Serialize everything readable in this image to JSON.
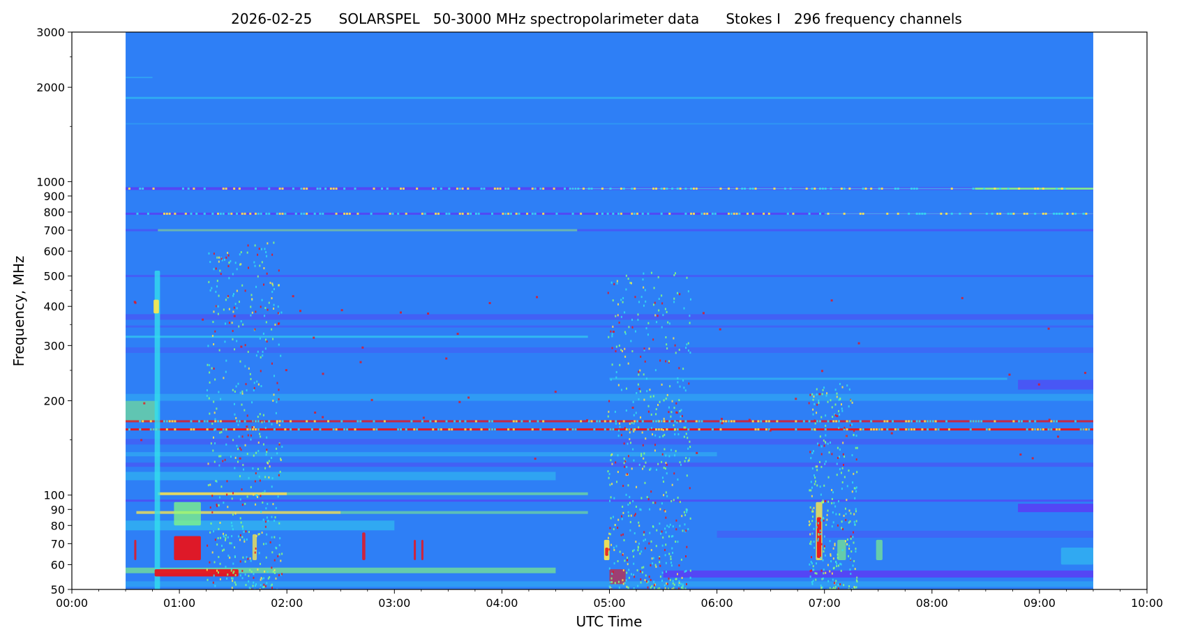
{
  "chart_data": {
    "type": "heatmap",
    "title": "2026-02-25      SOLARSPEL   50-3000 MHz spectropolarimeter data      Stokes I   296 frequency channels",
    "xlabel": "UTC Time",
    "ylabel": "Frequency, MHz",
    "x_scale": "time",
    "y_scale": "log",
    "xlim": [
      "00:00",
      "10:00"
    ],
    "ylim": [
      50,
      3000
    ],
    "x_ticks": [
      "00:00",
      "01:00",
      "02:00",
      "03:00",
      "04:00",
      "05:00",
      "06:00",
      "07:00",
      "08:00",
      "09:00",
      "10:00"
    ],
    "y_ticks": [
      {
        "value": 50,
        "label": "50"
      },
      {
        "value": 60,
        "label": "60"
      },
      {
        "value": 70,
        "label": "70"
      },
      {
        "value": 80,
        "label": "80"
      },
      {
        "value": 90,
        "label": "90"
      },
      {
        "value": 100,
        "label": "100"
      },
      {
        "value": 200,
        "label": "200"
      },
      {
        "value": 300,
        "label": "300"
      },
      {
        "value": 400,
        "label": "400"
      },
      {
        "value": 500,
        "label": "500"
      },
      {
        "value": 600,
        "label": "600"
      },
      {
        "value": 700,
        "label": "700"
      },
      {
        "value": 800,
        "label": "800"
      },
      {
        "value": 900,
        "label": "900"
      },
      {
        "value": 1000,
        "label": "1000"
      },
      {
        "value": 2000,
        "label": "2000"
      },
      {
        "value": 3000,
        "label": "3000"
      }
    ],
    "y_minor_ticks": [
      1500,
      2500,
      150,
      250,
      350,
      450
    ],
    "data_time_range": [
      "00:30",
      "09:30"
    ],
    "colormap": "jet",
    "colors": {
      "background": "#2e7ff6",
      "weak": "#5a3cf5",
      "cyan": "#33ddee",
      "green": "#8aff7a",
      "yellow": "#ffe84a",
      "red": "#e8141c"
    },
    "bands": [
      {
        "freq": 2150,
        "t0": 0.5,
        "t1": 0.75,
        "color": "cyan",
        "opacity": 0.35,
        "width": 2
      },
      {
        "freq": 1850,
        "t0": 0.5,
        "t1": 9.5,
        "color": "cyan",
        "opacity": 0.45,
        "width": 3
      },
      {
        "freq": 1530,
        "t0": 0.5,
        "t1": 9.5,
        "color": "cyan",
        "opacity": 0.25,
        "width": 2
      },
      {
        "freq": 950,
        "t0": 0.5,
        "t1": 9.5,
        "color": "weak",
        "opacity": 0.85,
        "width": 4
      },
      {
        "freq": 950,
        "t0": 4.7,
        "t1": 9.5,
        "color": "cyan",
        "opacity": 0.6,
        "width": 2
      },
      {
        "freq": 950,
        "t0": 8.4,
        "t1": 9.5,
        "color": "green",
        "opacity": 0.8,
        "width": 3
      },
      {
        "freq": 790,
        "t0": 0.5,
        "t1": 9.5,
        "color": "weak",
        "opacity": 0.8,
        "width": 3
      },
      {
        "freq": 790,
        "t0": 7.0,
        "t1": 9.5,
        "color": "cyan",
        "opacity": 0.6,
        "width": 2
      },
      {
        "freq": 700,
        "t0": 0.5,
        "t1": 9.5,
        "color": "weak",
        "opacity": 0.55,
        "width": 3
      },
      {
        "freq": 700,
        "t0": 0.8,
        "t1": 4.7,
        "color": "green",
        "opacity": 0.55,
        "width": 3
      },
      {
        "freq": 500,
        "t0": 0.5,
        "t1": 9.5,
        "color": "weak",
        "opacity": 0.5,
        "width": 3
      },
      {
        "freq": 370,
        "t0": 0.5,
        "t1": 9.5,
        "color": "weak",
        "opacity": 0.45,
        "width": 8
      },
      {
        "freq": 345,
        "t0": 0.5,
        "t1": 9.5,
        "color": "weak",
        "opacity": 0.4,
        "width": 3
      },
      {
        "freq": 320,
        "t0": 0.5,
        "t1": 4.8,
        "color": "cyan",
        "opacity": 0.6,
        "width": 3
      },
      {
        "freq": 290,
        "t0": 0.5,
        "t1": 9.5,
        "color": "weak",
        "opacity": 0.3,
        "width": 8
      },
      {
        "freq": 235,
        "t0": 5.0,
        "t1": 8.7,
        "color": "cyan",
        "opacity": 0.45,
        "width": 3
      },
      {
        "freq": 225,
        "t0": 8.8,
        "t1": 9.5,
        "color": "weak",
        "opacity": 0.6,
        "width": 14
      },
      {
        "freq": 205,
        "t0": 0.5,
        "t1": 9.5,
        "color": "cyan",
        "opacity": 0.3,
        "width": 10
      },
      {
        "freq": 185,
        "t0": 0.5,
        "t1": 0.8,
        "color": "green",
        "opacity": 0.55,
        "width": 30
      },
      {
        "freq": 172,
        "t0": 0.5,
        "t1": 9.5,
        "color": "red",
        "opacity": 0.8,
        "width": 3
      },
      {
        "freq": 162,
        "t0": 0.5,
        "t1": 9.5,
        "color": "red",
        "opacity": 0.95,
        "width": 3
      },
      {
        "freq": 148,
        "t0": 0.5,
        "t1": 9.5,
        "color": "weak",
        "opacity": 0.4,
        "width": 8
      },
      {
        "freq": 135,
        "t0": 0.5,
        "t1": 6.0,
        "color": "cyan",
        "opacity": 0.35,
        "width": 6
      },
      {
        "freq": 125,
        "t0": 0.5,
        "t1": 9.5,
        "color": "weak",
        "opacity": 0.45,
        "width": 6
      },
      {
        "freq": 115,
        "t0": 0.5,
        "t1": 4.5,
        "color": "cyan",
        "opacity": 0.4,
        "width": 12
      },
      {
        "freq": 101,
        "t0": 0.8,
        "t1": 2.0,
        "color": "yellow",
        "opacity": 0.85,
        "width": 4
      },
      {
        "freq": 101,
        "t0": 2.0,
        "t1": 4.8,
        "color": "green",
        "opacity": 0.55,
        "width": 4
      },
      {
        "freq": 96,
        "t0": 0.5,
        "t1": 9.5,
        "color": "weak",
        "opacity": 0.65,
        "width": 3
      },
      {
        "freq": 91,
        "t0": 8.8,
        "t1": 9.5,
        "color": "weak",
        "opacity": 0.85,
        "width": 12
      },
      {
        "freq": 88,
        "t0": 0.6,
        "t1": 2.5,
        "color": "yellow",
        "opacity": 0.75,
        "width": 4
      },
      {
        "freq": 88,
        "t0": 2.5,
        "t1": 4.8,
        "color": "green",
        "opacity": 0.5,
        "width": 4
      },
      {
        "freq": 80,
        "t0": 0.5,
        "t1": 3.0,
        "color": "cyan",
        "opacity": 0.45,
        "width": 14
      },
      {
        "freq": 75,
        "t0": 6.0,
        "t1": 9.5,
        "color": "weak",
        "opacity": 0.35,
        "width": 10
      },
      {
        "freq": 57.5,
        "t0": 0.5,
        "t1": 4.5,
        "color": "green",
        "opacity": 0.6,
        "width": 8
      },
      {
        "freq": 56,
        "t0": 5.5,
        "t1": 9.5,
        "color": "weak",
        "opacity": 0.85,
        "width": 10
      },
      {
        "freq": 52,
        "t0": 0.5,
        "t1": 9.5,
        "color": "cyan",
        "opacity": 0.3,
        "width": 8
      }
    ],
    "bursts": [
      {
        "f0": 50,
        "f1": 520,
        "t0": 0.77,
        "t1": 0.82,
        "color": "cyan",
        "opacity": 0.8
      },
      {
        "f0": 380,
        "f1": 420,
        "t0": 0.76,
        "t1": 0.81,
        "color": "yellow",
        "opacity": 0.9
      },
      {
        "f0": 55,
        "f1": 58,
        "t0": 0.77,
        "t1": 1.55,
        "color": "red",
        "opacity": 0.95
      },
      {
        "f0": 62,
        "f1": 74,
        "t0": 0.95,
        "t1": 1.2,
        "color": "red",
        "opacity": 0.95
      },
      {
        "f0": 80,
        "f1": 95,
        "t0": 0.95,
        "t1": 1.2,
        "color": "green",
        "opacity": 0.7
      },
      {
        "f0": 62,
        "f1": 72,
        "t0": 0.58,
        "t1": 0.6,
        "color": "red",
        "opacity": 0.85
      },
      {
        "f0": 62,
        "f1": 75,
        "t0": 1.68,
        "t1": 1.72,
        "color": "yellow",
        "opacity": 0.75
      },
      {
        "f0": 62,
        "f1": 76,
        "t0": 2.7,
        "t1": 2.73,
        "color": "red",
        "opacity": 0.85
      },
      {
        "f0": 62,
        "f1": 72,
        "t0": 3.18,
        "t1": 3.2,
        "color": "red",
        "opacity": 0.85
      },
      {
        "f0": 62,
        "f1": 72,
        "t0": 3.25,
        "t1": 3.27,
        "color": "red",
        "opacity": 0.85
      },
      {
        "f0": 62,
        "f1": 72,
        "t0": 4.95,
        "t1": 5.0,
        "color": "yellow",
        "opacity": 0.9
      },
      {
        "f0": 64,
        "f1": 68,
        "t0": 4.96,
        "t1": 4.99,
        "color": "red",
        "opacity": 0.85
      },
      {
        "f0": 62,
        "f1": 95,
        "t0": 6.92,
        "t1": 6.98,
        "color": "yellow",
        "opacity": 0.8
      },
      {
        "f0": 63,
        "f1": 85,
        "t0": 6.93,
        "t1": 6.97,
        "color": "red",
        "opacity": 0.95
      },
      {
        "f0": 62,
        "f1": 72,
        "t0": 7.12,
        "t1": 7.2,
        "color": "green",
        "opacity": 0.6
      },
      {
        "f0": 62,
        "f1": 72,
        "t0": 7.48,
        "t1": 7.54,
        "color": "green",
        "opacity": 0.6
      },
      {
        "f0": 60,
        "f1": 68,
        "t0": 9.2,
        "t1": 9.5,
        "color": "cyan",
        "opacity": 0.45
      },
      {
        "f0": 52,
        "f1": 58,
        "t0": 5.0,
        "t1": 5.15,
        "color": "red",
        "opacity": 0.6
      }
    ],
    "speckle_regions": [
      {
        "t0": 1.25,
        "t1": 1.95,
        "f0": 50,
        "f1": 650,
        "density": 0.55
      },
      {
        "t0": 4.98,
        "t1": 5.75,
        "f0": 50,
        "f1": 520,
        "density": 0.6
      },
      {
        "t0": 6.85,
        "t1": 7.3,
        "f0": 50,
        "f1": 230,
        "density": 0.35
      }
    ]
  }
}
